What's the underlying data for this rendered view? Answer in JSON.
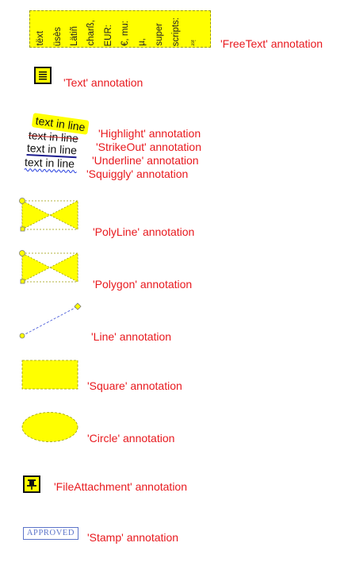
{
  "colors": {
    "label": "#e8191e",
    "annotation_fill": "#ffff00",
    "annotation_border": "#9a9a00",
    "line": "#3b4fd6",
    "stamp": "#5c74c9"
  },
  "freetext": {
    "columns": [
      "tëxt",
      "üsès",
      "Lätiñ",
      "charß,",
      "EUR:",
      "€, mu:",
      "µ,",
      "super",
      "scripts:",
      "²³!"
    ],
    "label": "'FreeText' annotation"
  },
  "text_annotation": {
    "icon": "note-icon",
    "label": "'Text' annotation"
  },
  "markup": {
    "highlight": {
      "text": "text in line",
      "label": "'Highlight' annotation"
    },
    "strikeout": {
      "text": "text in line",
      "label": "'StrikeOut' annotation"
    },
    "underline": {
      "text": "text in line",
      "label": "'Underline' annotation"
    },
    "squiggly": {
      "text": "text in line",
      "label": "'Squiggly' annotation"
    }
  },
  "polyline": {
    "label": "'PolyLine' annotation"
  },
  "polygon": {
    "label": "'Polygon' annotation"
  },
  "line": {
    "label": "'Line' annotation"
  },
  "square": {
    "label": "'Square' annotation"
  },
  "circle": {
    "label": "'Circle' annotation"
  },
  "file_attachment": {
    "icon": "pushpin-icon",
    "label": "'FileAttachment' annotation"
  },
  "stamp": {
    "text": "APPROVED",
    "label": "'Stamp' annotation"
  }
}
